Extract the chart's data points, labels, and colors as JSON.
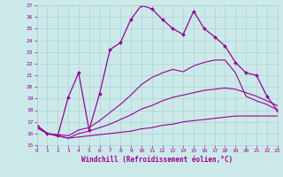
{
  "xlabel": "Windchill (Refroidissement éolien,°C)",
  "xlim": [
    0,
    23
  ],
  "ylim": [
    15,
    27
  ],
  "yticks": [
    15,
    16,
    17,
    18,
    19,
    20,
    21,
    22,
    23,
    24,
    25,
    26,
    27
  ],
  "xticks": [
    0,
    1,
    2,
    3,
    4,
    5,
    6,
    7,
    8,
    9,
    10,
    11,
    12,
    13,
    14,
    15,
    16,
    17,
    18,
    19,
    20,
    21,
    22,
    23
  ],
  "bg_color": "#cce9e9",
  "line_color": "#990099",
  "grid_color": "#aad4d4",
  "series": [
    {
      "x": [
        0,
        1,
        2,
        3,
        4,
        5,
        6,
        7,
        8,
        9,
        10,
        11,
        12,
        13,
        14,
        15,
        16,
        17,
        18,
        19,
        20,
        21,
        22,
        23
      ],
      "y": [
        16.5,
        16.0,
        15.8,
        15.6,
        15.7,
        15.8,
        15.9,
        16.0,
        16.1,
        16.2,
        16.4,
        16.5,
        16.7,
        16.8,
        17.0,
        17.1,
        17.2,
        17.3,
        17.4,
        17.5,
        17.5,
        17.5,
        17.5,
        17.5
      ],
      "marker": false
    },
    {
      "x": [
        0,
        1,
        2,
        3,
        4,
        5,
        6,
        7,
        8,
        9,
        10,
        11,
        12,
        13,
        14,
        15,
        16,
        17,
        18,
        19,
        20,
        21,
        22,
        23
      ],
      "y": [
        16.5,
        16.0,
        15.8,
        15.6,
        16.0,
        16.2,
        16.5,
        16.8,
        17.2,
        17.6,
        18.1,
        18.4,
        18.8,
        19.1,
        19.3,
        19.5,
        19.7,
        19.8,
        19.9,
        19.8,
        19.5,
        19.2,
        18.8,
        18.4
      ],
      "marker": false
    },
    {
      "x": [
        0,
        1,
        2,
        3,
        4,
        5,
        6,
        7,
        8,
        9,
        10,
        11,
        12,
        13,
        14,
        15,
        16,
        17,
        18,
        19,
        20,
        21,
        22,
        23
      ],
      "y": [
        16.7,
        16.0,
        15.9,
        15.8,
        16.3,
        16.5,
        17.1,
        17.8,
        18.5,
        19.3,
        20.2,
        20.8,
        21.2,
        21.5,
        21.3,
        21.8,
        22.1,
        22.3,
        22.3,
        21.2,
        19.2,
        18.8,
        18.5,
        18.0
      ],
      "marker": false
    },
    {
      "x": [
        0,
        1,
        2,
        3,
        4,
        5,
        6,
        7,
        8,
        9,
        10,
        11,
        12,
        13,
        14,
        15,
        16,
        17,
        18,
        19,
        20,
        21,
        22,
        23
      ],
      "y": [
        16.7,
        16.0,
        15.8,
        19.1,
        21.2,
        16.3,
        19.4,
        23.2,
        23.8,
        25.8,
        27.0,
        26.7,
        25.8,
        25.0,
        24.5,
        26.5,
        25.0,
        24.3,
        23.5,
        22.1,
        21.2,
        21.0,
        19.2,
        18.0
      ],
      "marker": true
    }
  ]
}
